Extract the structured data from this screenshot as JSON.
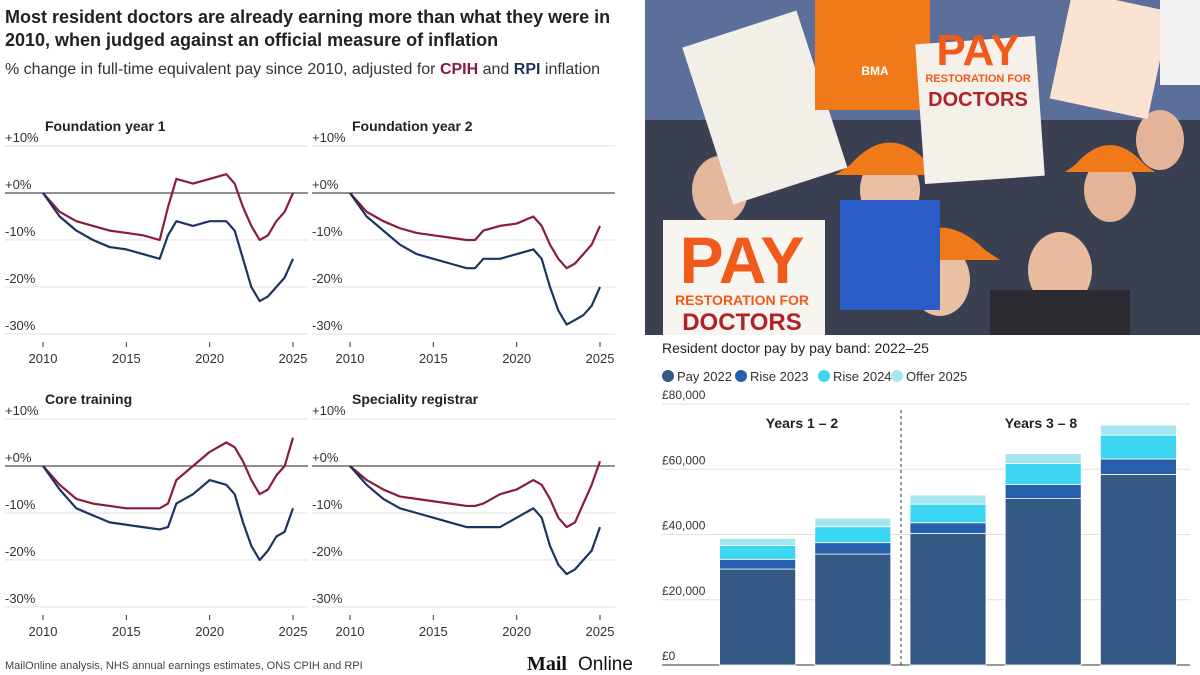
{
  "header": {
    "title": "Most resident doctors are already earning more than what they were in 2010, when judged against an official measure of inflation",
    "subtitle_parts": [
      "% change in full-time equivalent pay since 2010, adjusted for",
      "and",
      "inflation"
    ]
  },
  "footer": {
    "source": "MailOnline analysis, NHS annual earnings estimates, ONS CPIH and RPI",
    "logo": [
      "Mail",
      "Online"
    ]
  },
  "photo": {
    "signs": [
      "PAY",
      "RESTORATION FOR",
      "DOCTORS",
      "PAY",
      "RESTORATION FOR",
      "DOCTORS",
      "BMA"
    ]
  },
  "chart_data": [
    {
      "type": "line",
      "title": "Foundation year 1",
      "x": [
        2010,
        2011,
        2012,
        2013,
        2014,
        2015,
        2016,
        2017,
        2017.5,
        2018,
        2019,
        2020,
        2021,
        2021.5,
        2022,
        2022.5,
        2023,
        2023.5,
        2024,
        2024.5,
        2025
      ],
      "xlim": [
        2010,
        2025
      ],
      "xticks": [
        2010,
        2015,
        2020,
        2025
      ],
      "ylim": [
        -30,
        10
      ],
      "yticks": [
        {
          "value": 10,
          "label": "+10%"
        },
        {
          "value": 0,
          "label": "+0%"
        },
        {
          "value": -10,
          "label": "-10%"
        },
        {
          "value": -20,
          "label": "-20%"
        },
        {
          "value": -30,
          "label": "-30%"
        }
      ],
      "grid": true,
      "series": [
        {
          "name": "CPIH",
          "color": "#8a1c3c",
          "values": [
            0,
            -4,
            -6,
            -7,
            -8,
            -8.5,
            -9,
            -10,
            -3,
            3,
            2,
            3,
            4,
            2,
            -3,
            -7,
            -10,
            -9,
            -6,
            -4,
            0
          ]
        },
        {
          "name": "RPI",
          "color": "#1c355e",
          "values": [
            0,
            -5,
            -8,
            -10,
            -11.5,
            -12,
            -13,
            -14,
            -9,
            -6,
            -7,
            -6,
            -6,
            -8,
            -14,
            -20,
            -23,
            -22,
            -20,
            -18,
            -14
          ]
        }
      ]
    },
    {
      "type": "line",
      "title": "Foundation year 2",
      "x": [
        2010,
        2011,
        2012,
        2013,
        2014,
        2015,
        2016,
        2017,
        2017.5,
        2018,
        2019,
        2020,
        2021,
        2021.5,
        2022,
        2022.5,
        2023,
        2023.5,
        2024,
        2024.5,
        2025
      ],
      "xlim": [
        2010,
        2025
      ],
      "xticks": [
        2010,
        2015,
        2020,
        2025
      ],
      "ylim": [
        -30,
        10
      ],
      "yticks": [
        {
          "value": 10,
          "label": "+10%"
        },
        {
          "value": 0,
          "label": "+0%"
        },
        {
          "value": -10,
          "label": "-10%"
        },
        {
          "value": -20,
          "label": "-20%"
        },
        {
          "value": -30,
          "label": "-30%"
        }
      ],
      "grid": true,
      "series": [
        {
          "color": "#8a1c3c",
          "values": [
            0,
            -4,
            -6,
            -7.5,
            -8.5,
            -9,
            -9.5,
            -10,
            -10,
            -8,
            -7,
            -6.5,
            -5,
            -7,
            -11,
            -14,
            -16,
            -15,
            -13,
            -11,
            -7
          ]
        },
        {
          "color": "#1c355e",
          "values": [
            0,
            -5,
            -8,
            -11,
            -13,
            -14,
            -15,
            -16,
            -16,
            -14,
            -14,
            -13,
            -12,
            -14,
            -20,
            -25,
            -28,
            -27,
            -26,
            -24,
            -20
          ]
        }
      ]
    },
    {
      "type": "line",
      "title": "Core training",
      "x": [
        2010,
        2011,
        2012,
        2013,
        2014,
        2015,
        2016,
        2017,
        2017.5,
        2018,
        2019,
        2020,
        2021,
        2021.5,
        2022,
        2022.5,
        2023,
        2023.5,
        2024,
        2024.5,
        2025
      ],
      "xlim": [
        2010,
        2025
      ],
      "xticks": [
        2010,
        2015,
        2020,
        2025
      ],
      "ylim": [
        -30,
        10
      ],
      "yticks": [
        {
          "value": 10,
          "label": "+10%"
        },
        {
          "value": 0,
          "label": "+0%"
        },
        {
          "value": -10,
          "label": "-10%"
        },
        {
          "value": -20,
          "label": "-20%"
        },
        {
          "value": -30,
          "label": "-30%"
        }
      ],
      "grid": true,
      "series": [
        {
          "color": "#8a1c3c",
          "values": [
            0,
            -4,
            -7,
            -8,
            -8.5,
            -9,
            -9,
            -9,
            -8,
            -3,
            0,
            3,
            5,
            4,
            1,
            -3,
            -6,
            -5,
            -2,
            0,
            6
          ]
        },
        {
          "color": "#1c355e",
          "values": [
            0,
            -5,
            -9,
            -10.5,
            -12,
            -12.5,
            -13,
            -13.5,
            -13,
            -8,
            -6,
            -3,
            -4,
            -6,
            -12,
            -17,
            -20,
            -18,
            -15,
            -14,
            -9
          ]
        }
      ]
    },
    {
      "type": "line",
      "title": "Speciality registrar",
      "x": [
        2010,
        2011,
        2012,
        2013,
        2014,
        2015,
        2016,
        2017,
        2017.5,
        2018,
        2019,
        2020,
        2021,
        2021.5,
        2022,
        2022.5,
        2023,
        2023.5,
        2024,
        2024.5,
        2025
      ],
      "xlim": [
        2010,
        2025
      ],
      "xticks": [
        2010,
        2015,
        2020,
        2025
      ],
      "ylim": [
        -30,
        10
      ],
      "yticks": [
        {
          "value": 10,
          "label": "+10%"
        },
        {
          "value": 0,
          "label": "+0%"
        },
        {
          "value": -10,
          "label": "-10%"
        },
        {
          "value": -20,
          "label": "-20%"
        },
        {
          "value": -30,
          "label": "-30%"
        }
      ],
      "grid": true,
      "series": [
        {
          "color": "#8a1c3c",
          "values": [
            0,
            -3,
            -5,
            -6.5,
            -7,
            -7.5,
            -8,
            -8.5,
            -8.5,
            -8,
            -6,
            -5,
            -3,
            -4,
            -7,
            -11,
            -13,
            -12,
            -8,
            -4,
            1
          ]
        },
        {
          "color": "#1c355e",
          "values": [
            0,
            -4,
            -7,
            -9,
            -10,
            -11,
            -12,
            -13,
            -13,
            -13,
            -13,
            -11,
            -9,
            -11,
            -17,
            -21,
            -23,
            -22,
            -20,
            -18,
            -13
          ]
        }
      ]
    },
    {
      "type": "bar",
      "stacked": true,
      "title": "Resident doctor pay by pay band: 2022–25",
      "categories": [
        null,
        null,
        null,
        null,
        null
      ],
      "ylim": [
        0,
        80000
      ],
      "yticks": [
        {
          "value": 0,
          "label": "£0"
        },
        {
          "value": 20000,
          "label": "£20,000"
        },
        {
          "value": 40000,
          "label": "£40,000"
        },
        {
          "value": 60000,
          "label": "£60,000"
        },
        {
          "value": 80000,
          "label": "£80,000"
        }
      ],
      "grid": true,
      "annotations": [
        "Years 1 – 2",
        "Years 3 – 8"
      ],
      "series": [
        {
          "name": "Pay 2022",
          "color": "#345985",
          "values": [
            29400,
            34000,
            40300,
            51000,
            58400
          ]
        },
        {
          "name": "Rise 2023",
          "color": "#2660ad",
          "values": [
            3000,
            3500,
            3300,
            4300,
            4750
          ]
        },
        {
          "name": "Rise 2024",
          "color": "#3dd6f2",
          "values": [
            4200,
            4900,
            5700,
            6500,
            7300
          ]
        },
        {
          "name": "Offer 2025",
          "color": "#a6e6ee",
          "values": [
            2200,
            2600,
            2800,
            3000,
            3100
          ]
        }
      ]
    }
  ]
}
